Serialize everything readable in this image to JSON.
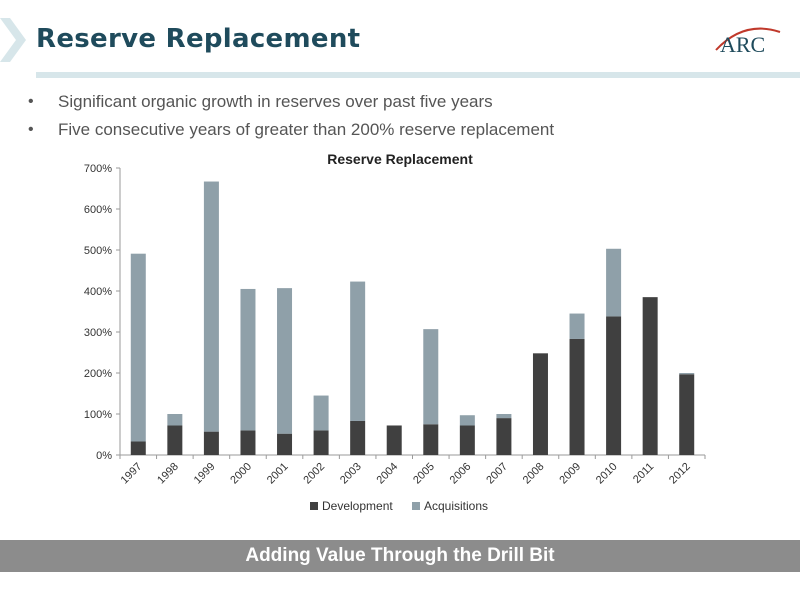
{
  "slide": {
    "title": "Reserve Replacement",
    "logo_text": "ARC",
    "bullets": [
      "Significant organic growth in reserves over past five years",
      "Five consecutive years of greater than 200% reserve replacement"
    ],
    "bullet_marker": "•",
    "footer": "Adding Value Through the Drill Bit"
  },
  "colors": {
    "title": "#1f4b5c",
    "development": "#404040",
    "acquisitions": "#8fa0a9",
    "footer_bar": "#8c8c8c",
    "accent_red": "#c0392b"
  },
  "chart_data": {
    "type": "bar",
    "stacked": true,
    "title": "Reserve Replacement",
    "categories": [
      "1997",
      "1998",
      "1999",
      "2000",
      "2001",
      "2002",
      "2003",
      "2004",
      "2005",
      "2006",
      "2007",
      "2008",
      "2009",
      "2010",
      "2011",
      "2012"
    ],
    "series": [
      {
        "name": "Development",
        "values": [
          33,
          72,
          57,
          60,
          52,
          60,
          83,
          72,
          75,
          72,
          90,
          248,
          283,
          338,
          385,
          197
        ]
      },
      {
        "name": "Acquisitions",
        "values": [
          458,
          28,
          610,
          345,
          355,
          85,
          340,
          0,
          232,
          25,
          10,
          0,
          62,
          165,
          0,
          3
        ]
      }
    ],
    "ylim": [
      0,
      700
    ],
    "yticks": [
      0,
      100,
      200,
      300,
      400,
      500,
      600,
      700
    ],
    "yformat": "%",
    "legend_position": "bottom",
    "grid": false
  }
}
